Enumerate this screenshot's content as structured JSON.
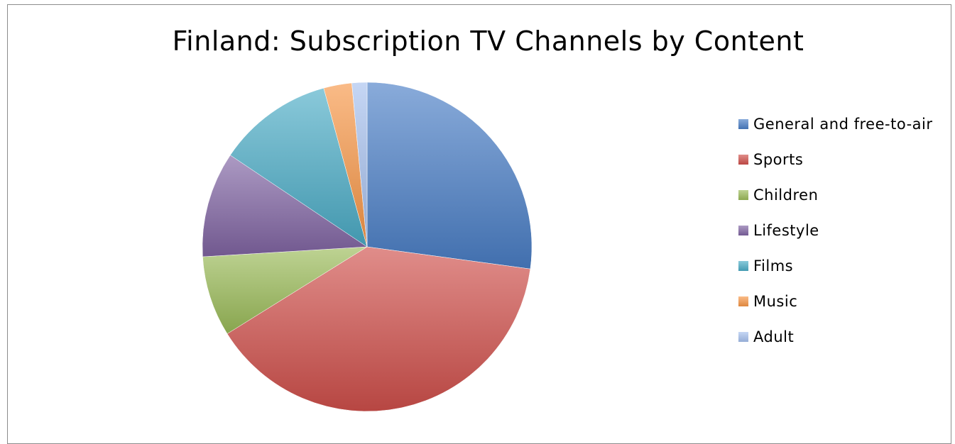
{
  "chart_data": {
    "type": "pie",
    "title": "Finland: Subscription TV Channels by Content",
    "categories": [
      "General and free-to-air",
      "Sports",
      "Children",
      "Lifestyle",
      "Films",
      "Music",
      "Adult"
    ],
    "values": [
      27.5,
      39.5,
      8.0,
      10.5,
      11.5,
      2.8,
      1.5
    ],
    "colors": [
      "#4a7ec6",
      "#d0504b",
      "#9bbb59",
      "#8064a2",
      "#4bacc6",
      "#f79646",
      "#a6c0ee"
    ],
    "start_angle_deg": 0,
    "direction": "clockwise",
    "legend_position": "right"
  }
}
